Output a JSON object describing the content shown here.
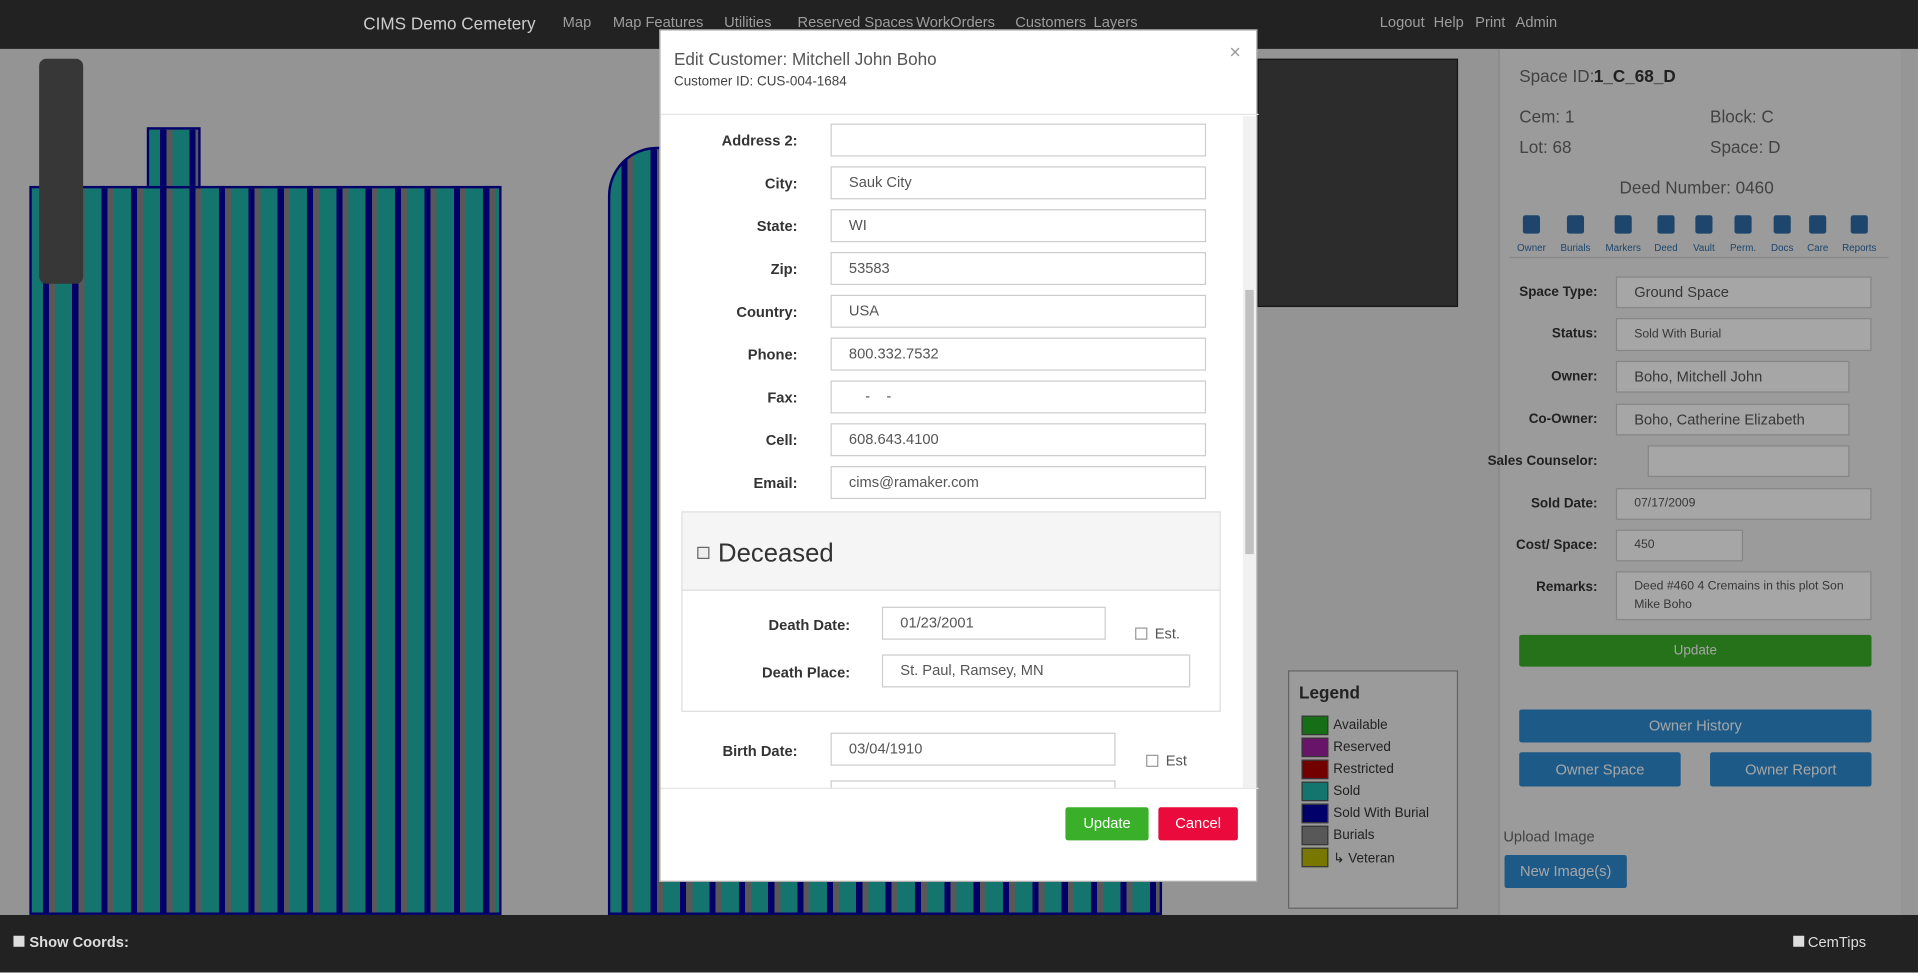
{
  "navbar": {
    "brand": "CIMS Demo Cemetery",
    "menu": [
      "Map",
      "Map Features",
      "Utilities",
      "Reserved Spaces",
      "WorkOrders",
      "Customers",
      "Layers"
    ],
    "links": [
      "Logout",
      "Help",
      "Print",
      "Admin"
    ]
  },
  "modal": {
    "title": "Edit Customer: Mitchell John Boho",
    "customer_id": "Customer ID: CUS-004-1684",
    "close": "×",
    "fields": [
      {
        "label": "Address 2:"
      },
      {
        "label": "City:",
        "value": "Sauk City"
      },
      {
        "label": "State:",
        "value": "WI"
      },
      {
        "label": "Zip:",
        "value": "53583"
      },
      {
        "label": "Country:",
        "value": "USA"
      },
      {
        "label": "Phone:",
        "value": "800.332.7532"
      },
      {
        "label": "Fax:",
        "value": "    -    -"
      },
      {
        "label": "Cell:",
        "value": "608.643.4100"
      },
      {
        "label": "Email:",
        "value": "cims@ramaker.com"
      }
    ],
    "deceased": {
      "heading": "Deceased",
      "death_date_label": "Death Date:",
      "death_date": "01/23/2001",
      "est": "Est.",
      "death_place_label": "Death Place:",
      "death_place": "St. Paul, Ramsey, MN"
    },
    "birth_date_label": "Birth Date:",
    "birth_date": "03/04/1910",
    "birth_est": "Est",
    "buttons": [
      "Update",
      "Cancel"
    ]
  },
  "panel": {
    "space_id_label": "Space ID:",
    "space_id": "1_C_68_D",
    "cem": "Cem: 1",
    "block": "Block: C",
    "lot": "Lot: 68",
    "space": "Space: D",
    "deed_number": "Deed Number: 0460",
    "tabs": [
      "Owner",
      "Burials",
      "Markers",
      "Deed",
      "Vault",
      "Perm.",
      "Docs",
      "Care",
      "Reports"
    ],
    "fields": [
      {
        "label": "Space Type:",
        "value": "Ground Space"
      },
      {
        "label": "Status:",
        "value": "Sold With Burial"
      },
      {
        "label": "Owner:",
        "value": "Boho, Mitchell John"
      },
      {
        "label": "Co-Owner:",
        "value": "Boho, Catherine Elizabeth"
      },
      {
        "label": "Sales Counselor:"
      },
      {
        "label": "Sold Date:",
        "value": "07/17/2009"
      },
      {
        "label": "Cost/ Space:",
        "value": "450"
      },
      {
        "label": "Remarks:",
        "value": "Deed #460  4 Cremains in this plot  Son Mike Boho"
      }
    ],
    "update": "Update",
    "owner_history": "Owner History",
    "owner_space": "Owner Space",
    "owner_report": "Owner Report",
    "upload_image": "Upload Image",
    "new_images": "New Image(s)"
  },
  "legend": {
    "title": "Legend",
    "items": [
      {
        "label": "Available",
        "color": "#22aa22"
      },
      {
        "label": "Reserved",
        "color": "#a020a0"
      },
      {
        "label": "Restricted",
        "color": "#b00000"
      },
      {
        "label": "Sold",
        "color": "#20b2aa"
      },
      {
        "label": "Sold With Burial",
        "color": "#0000a0"
      },
      {
        "label": "Burials",
        "color": "#888888"
      },
      {
        "label": "↳ Veteran",
        "color": "#b8b800"
      }
    ]
  },
  "footer": {
    "show_coords": "Show Coords:",
    "cemtips": "CemTips"
  }
}
